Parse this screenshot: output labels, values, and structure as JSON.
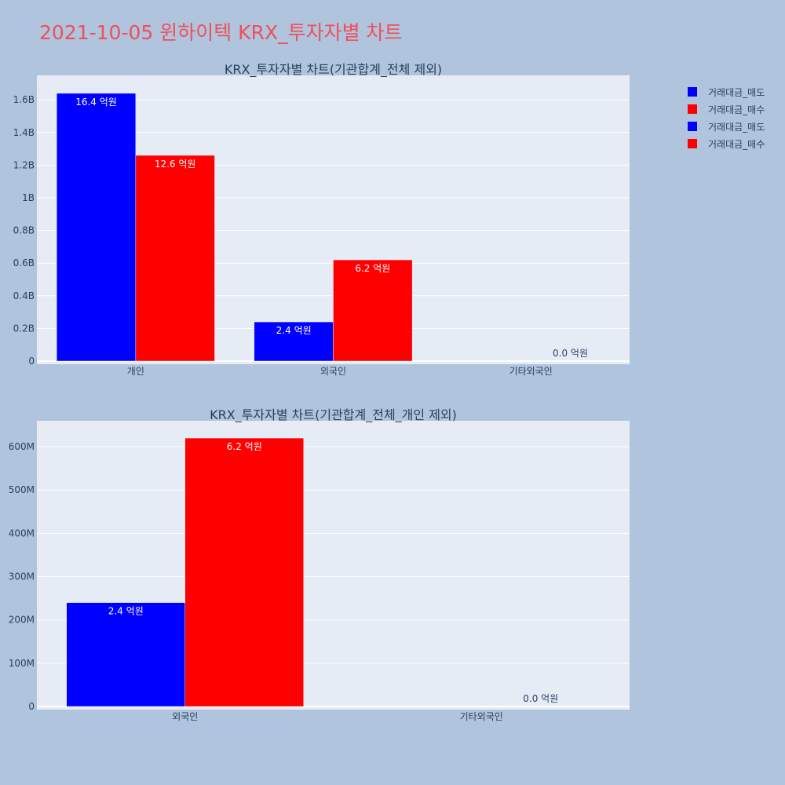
{
  "page_title": "2021-10-05 윈하이텍 KRX_투자자별 차트",
  "legend": [
    {
      "label": "거래대금_매도",
      "color": "#0000ff"
    },
    {
      "label": "거래대금_매수",
      "color": "#ff0000"
    },
    {
      "label": "거래대금_매도",
      "color": "#0000ff"
    },
    {
      "label": "거래대금_매수",
      "color": "#ff0000"
    }
  ],
  "chart_data": [
    {
      "type": "bar",
      "title": "KRX_투자자별 차트(기관합계_전체 제외)",
      "categories": [
        "개인",
        "외국인",
        "기타외국인"
      ],
      "ylim": [
        0,
        1750000000
      ],
      "yticks": [
        0,
        200000000,
        400000000,
        600000000,
        800000000,
        1000000000,
        1200000000,
        1400000000,
        1600000000
      ],
      "ytick_labels": [
        "0",
        "0.2B",
        "0.4B",
        "0.6B",
        "0.8B",
        "1B",
        "1.2B",
        "1.4B",
        "1.6B"
      ],
      "series": [
        {
          "name": "거래대금_매도",
          "color": "#0000ff",
          "values": [
            1640000000,
            240000000,
            0
          ],
          "labels": [
            "16.4 억원",
            "2.4 억원",
            ""
          ]
        },
        {
          "name": "거래대금_매수",
          "color": "#ff0000",
          "values": [
            1260000000,
            620000000,
            0
          ],
          "labels": [
            "12.6 억원",
            "6.2 억원",
            "0.0 억원"
          ]
        }
      ]
    },
    {
      "type": "bar",
      "title": "KRX_투자자별 차트(기관합계_전체_개인 제외)",
      "categories": [
        "외국인",
        "기타외국인"
      ],
      "ylim": [
        0,
        660000000
      ],
      "yticks": [
        0,
        100000000,
        200000000,
        300000000,
        400000000,
        500000000,
        600000000
      ],
      "ytick_labels": [
        "0",
        "100M",
        "200M",
        "300M",
        "400M",
        "500M",
        "600M"
      ],
      "series": [
        {
          "name": "거래대금_매도",
          "color": "#0000ff",
          "values": [
            240000000,
            0
          ],
          "labels": [
            "2.4 억원",
            ""
          ]
        },
        {
          "name": "거래대금_매수",
          "color": "#ff0000",
          "values": [
            620000000,
            0
          ],
          "labels": [
            "6.2 억원",
            "0.0 억원"
          ]
        }
      ]
    }
  ]
}
